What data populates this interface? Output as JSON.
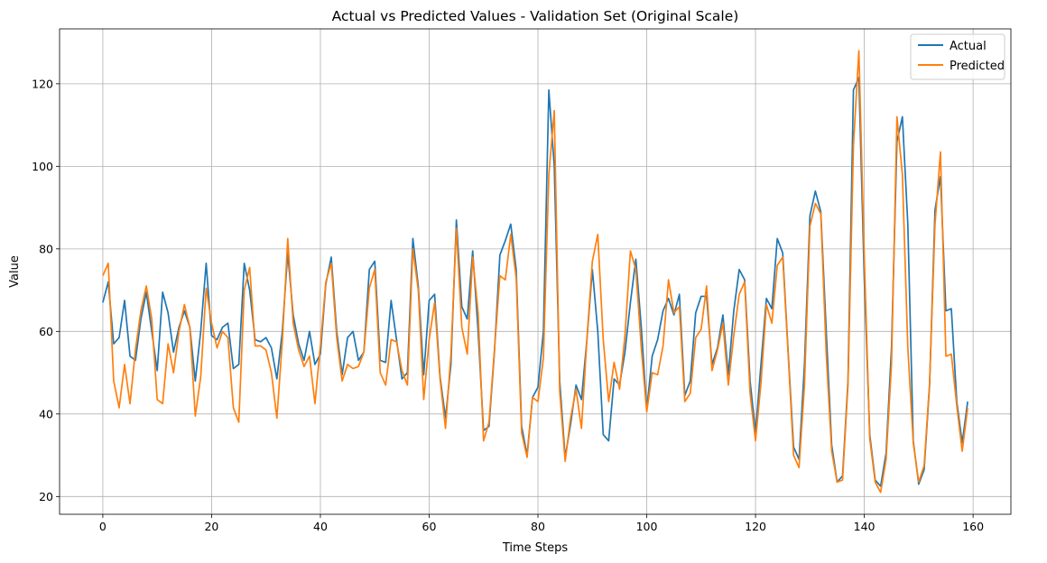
{
  "chart_data": {
    "type": "line",
    "title": "Actual vs Predicted Values - Validation Set (Original Scale)",
    "xlabel": "Time Steps",
    "ylabel": "Value",
    "xlim": [
      -7.95,
      166.95
    ],
    "ylim": [
      15.7,
      133.3
    ],
    "xticks": [
      0,
      20,
      40,
      60,
      80,
      100,
      120,
      140,
      160
    ],
    "yticks": [
      20,
      40,
      60,
      80,
      100,
      120
    ],
    "grid": true,
    "legend_position": "top-right",
    "series": [
      {
        "name": "Actual",
        "color": "#1f77b4",
        "values": [
          67,
          72,
          57,
          58.5,
          67.5,
          54,
          53,
          63,
          69.5,
          60,
          50.5,
          69.5,
          64.5,
          55,
          61,
          65,
          61,
          48,
          60,
          76.5,
          59,
          58,
          61,
          62,
          51,
          52,
          76.5,
          70,
          58,
          57.5,
          58.5,
          56,
          48.5,
          60,
          79,
          64,
          57,
          53,
          60,
          52,
          54.5,
          71.5,
          78,
          60,
          49.5,
          58.5,
          60,
          53,
          55,
          75,
          77,
          53,
          52.5,
          67.5,
          58,
          48.5,
          50,
          82.5,
          71,
          49.5,
          67.5,
          69,
          49,
          39,
          52,
          87,
          66,
          63,
          79.5,
          60,
          36,
          37,
          55,
          78.5,
          82,
          86,
          75,
          37,
          30,
          44,
          46.5,
          60,
          118.5,
          100,
          48,
          29.5,
          37.5,
          47,
          43.5,
          58,
          75,
          60,
          35,
          33.5,
          48.5,
          47,
          55,
          67,
          77.5,
          61,
          41,
          54,
          58,
          65,
          68,
          64,
          69,
          44.5,
          48,
          64.5,
          68.5,
          68.5,
          52,
          56,
          64,
          49.5,
          65,
          75,
          72.5,
          48,
          35.5,
          52,
          68,
          65.5,
          82.5,
          79,
          55,
          32,
          29,
          52,
          88,
          94,
          89,
          60,
          32.5,
          23.5,
          25,
          48,
          118.5,
          121.5,
          72.5,
          35,
          24,
          22.5,
          30.5,
          56,
          106,
          112,
          86,
          33.5,
          23,
          26.5,
          47,
          89.5,
          97.5,
          65,
          65.5,
          43,
          33,
          43
        ]
      },
      {
        "name": "Predicted",
        "color": "#ff7f0e",
        "values": [
          73.5,
          76.5,
          48,
          41.5,
          52,
          42.5,
          55.5,
          65,
          71,
          63,
          43.5,
          42.5,
          57,
          50,
          60,
          66.5,
          61,
          39.5,
          49,
          70.5,
          62,
          56,
          60,
          58.5,
          41.5,
          38,
          70,
          75.5,
          56.5,
          56.5,
          55.5,
          50,
          39,
          57.5,
          82.5,
          62,
          55.5,
          51.5,
          54,
          42.5,
          56.5,
          72,
          76.5,
          58.5,
          48,
          52,
          51,
          51.5,
          55,
          70.5,
          75,
          50,
          47,
          58,
          57.5,
          50.5,
          47,
          80,
          70,
          43.5,
          58,
          67,
          48.5,
          36.5,
          54.5,
          85,
          61,
          54.5,
          78,
          64.5,
          33.5,
          38,
          55.5,
          73.5,
          72.5,
          83.5,
          73,
          35.5,
          29.5,
          44,
          43,
          53.5,
          98,
          113.5,
          45.5,
          28.5,
          39,
          46,
          36.5,
          58,
          77,
          83.5,
          58,
          43,
          52.5,
          46,
          59,
          79.5,
          75,
          56,
          40.5,
          50,
          49.5,
          56.5,
          72.5,
          64.5,
          66,
          43,
          45,
          58.5,
          60.5,
          71,
          50.5,
          55.5,
          62,
          47,
          59,
          69,
          72,
          45,
          33.5,
          47.5,
          66.5,
          62,
          76,
          78,
          54.5,
          30,
          27,
          47,
          85.5,
          91,
          88.5,
          54.5,
          31,
          23.5,
          24,
          47,
          105,
          128,
          78,
          34,
          23.5,
          21,
          29,
          52,
          112,
          98,
          56,
          33,
          23.5,
          27.5,
          47.5,
          86,
          103.5,
          54,
          54.5,
          42,
          31,
          41.5
        ]
      }
    ]
  }
}
